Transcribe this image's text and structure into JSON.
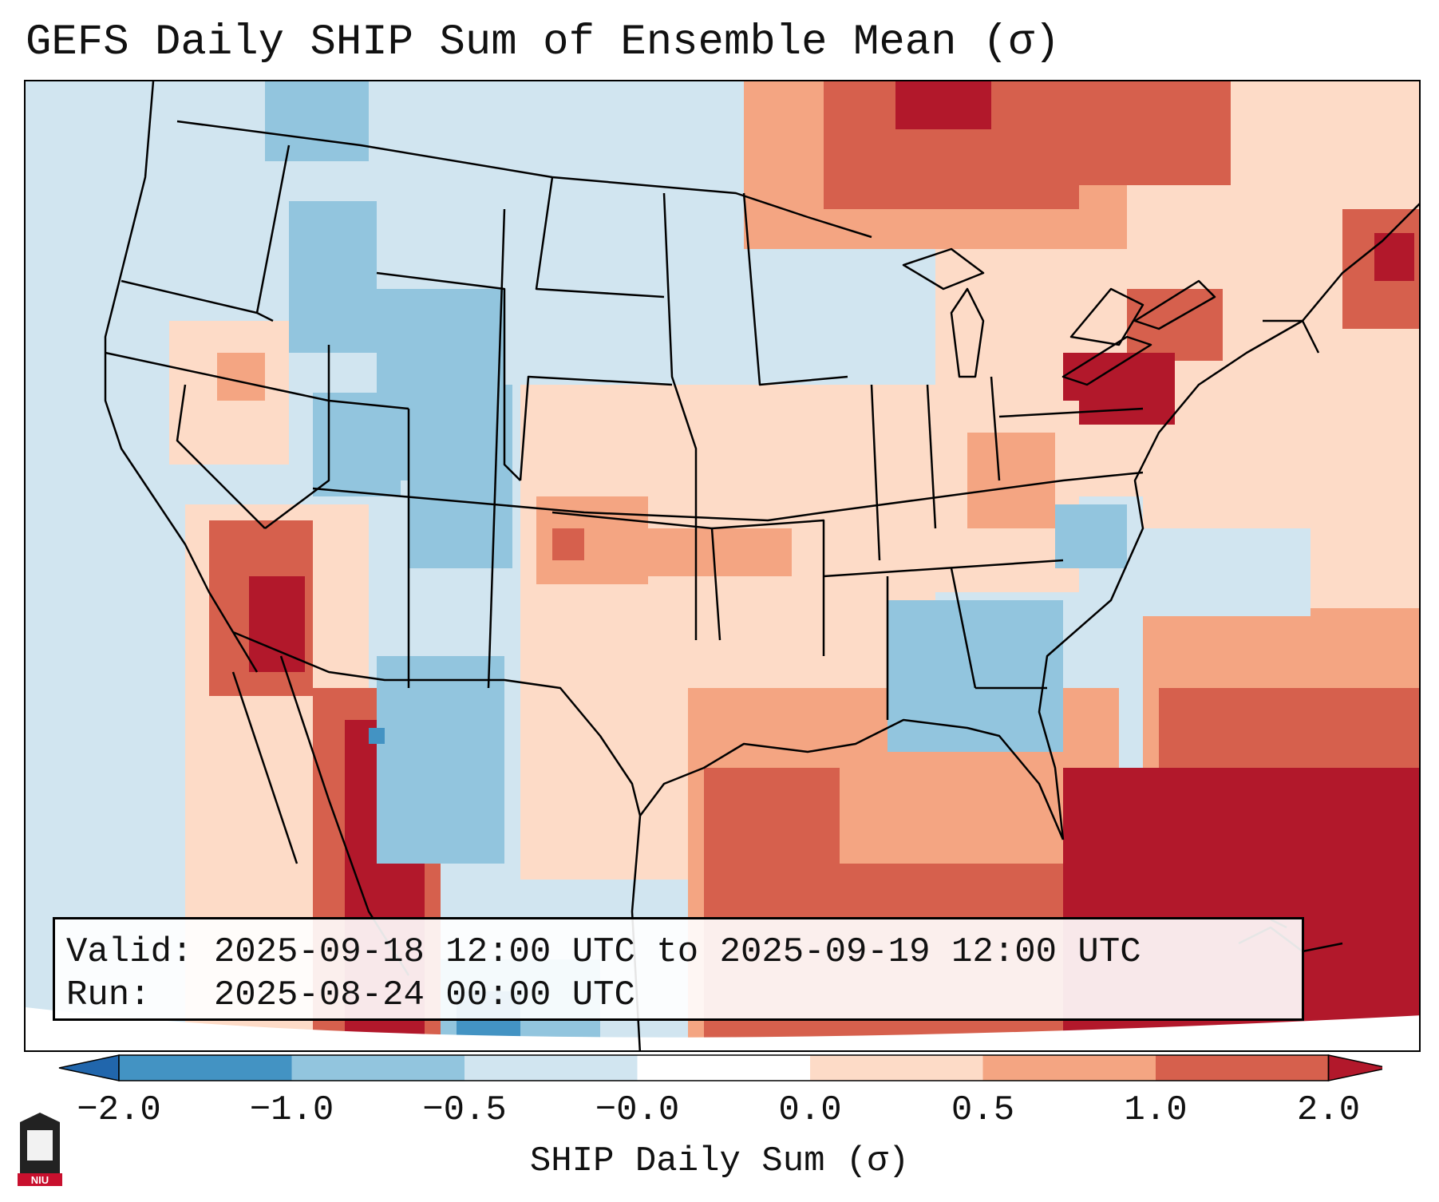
{
  "title": "GEFS Daily SHIP Sum of Ensemble Mean (σ)",
  "valid_label": "Valid:",
  "valid_text": "2025-09-18 12:00 UTC to 2025-09-19 12:00 UTC",
  "run_label": "Run:",
  "run_text": "2025-08-24 00:00 UTC",
  "colorbar": {
    "label": "SHIP Daily Sum (σ)",
    "tick_labels": [
      "−2.0",
      "−1.0",
      "−0.5",
      "−0.0",
      "0.0",
      "0.5",
      "1.0",
      "2.0"
    ],
    "bins": [
      {
        "range": "< -2.0",
        "color": "#2166ac"
      },
      {
        "range": "-2.0 to -1.0",
        "color": "#4393c3"
      },
      {
        "range": "-1.0 to -0.5",
        "color": "#92c5de"
      },
      {
        "range": "-0.5 to -0.0",
        "color": "#d1e5f0"
      },
      {
        "range": "-0.0 to 0.0",
        "color": "#ffffff"
      },
      {
        "range": "0.0 to 0.5",
        "color": "#fddbc7"
      },
      {
        "range": "0.5 to 1.0",
        "color": "#f4a582"
      },
      {
        "range": "1.0 to 2.0",
        "color": "#d6604d"
      },
      {
        "range": "> 2.0",
        "color": "#b2182b"
      }
    ]
  },
  "logo_text": "NIU",
  "colors": {
    "background_sea": "#d1e5f0",
    "outline": "#000000",
    "logo_red": "#c8102e"
  }
}
